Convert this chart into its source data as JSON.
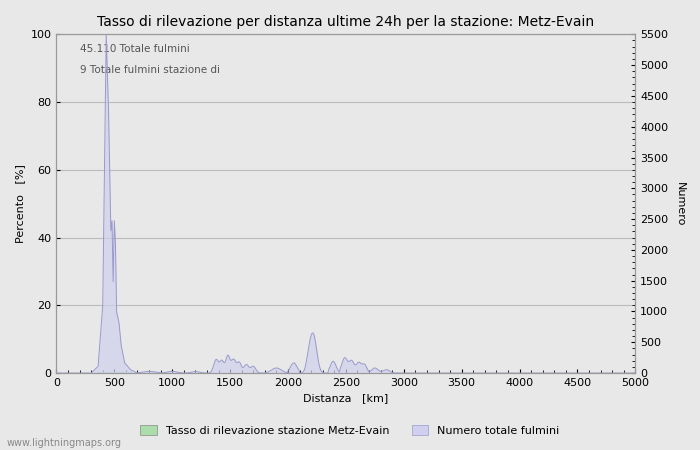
{
  "title": "Tasso di rilevazione per distanza ultime 24h per la stazione: Metz-Evain",
  "xlabel": "Distanza   [km]",
  "ylabel_left": "Percento   [%]",
  "ylabel_right": "Numero",
  "annotation_line1": "45.110 Totale fulmini",
  "annotation_line2": "9 Totale fulmini stazione di",
  "xlim": [
    0,
    5000
  ],
  "ylim_left": [
    0,
    100
  ],
  "ylim_right": [
    0,
    5500
  ],
  "yticks_left": [
    0,
    20,
    40,
    60,
    80,
    100
  ],
  "yticks_right": [
    0,
    500,
    1000,
    1500,
    2000,
    2500,
    3000,
    3500,
    4000,
    4500,
    5000,
    5500
  ],
  "xticks": [
    0,
    500,
    1000,
    1500,
    2000,
    2500,
    3000,
    3500,
    4000,
    4500,
    5000
  ],
  "bg_color": "#e8e8e8",
  "plot_bg_color": "#e8e8e8",
  "grid_color": "#bbbbbb",
  "line_color_blue": "#9999cc",
  "fill_color_blue": "#d0d0ee",
  "fill_color_green": "#aaddaa",
  "legend_label_green": "Tasso di rilevazione stazione Metz-Evain",
  "legend_label_blue": "Numero totale fulmini",
  "watermark": "www.lightningmaps.org",
  "title_fontsize": 10,
  "label_fontsize": 8,
  "tick_fontsize": 8
}
